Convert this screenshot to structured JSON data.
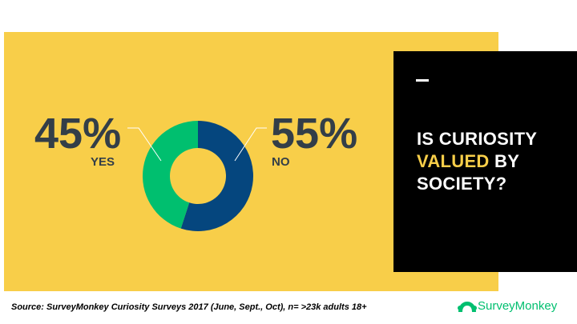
{
  "chart_data": {
    "type": "pie",
    "variant": "donut",
    "categories": [
      "YES",
      "NO"
    ],
    "values": [
      45,
      55
    ],
    "value_labels": [
      "45%",
      "55%"
    ],
    "colors": [
      "#00bf6f",
      "#05467e"
    ]
  },
  "question": {
    "part1": "IS CURIOSITY",
    "highlight": "VALUED",
    "part2": "BY",
    "part3": "SOCIETY?"
  },
  "source": "Source: SurveyMonkey Curiosity Surveys 2017 (June, Sept., Oct), n= >23k adults 18+",
  "logo": "SurveyMonkey",
  "colors": {
    "panel": "#f8ce49",
    "box": "#000000",
    "text": "#333e48"
  }
}
